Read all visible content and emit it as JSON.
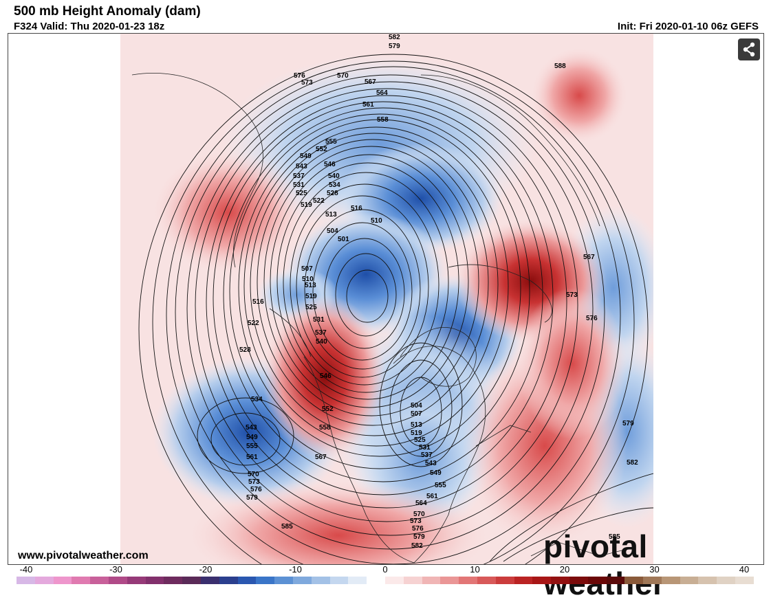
{
  "header": {
    "title": "500 mb Height Anomaly (dam)",
    "valid": "F324 Valid: Thu 2020-01-23 18z",
    "init": "Init: Fri 2020-01-10 06z GEFS"
  },
  "footer": {
    "url": "www.pivotalweather.com",
    "brand": "pivotal weather"
  },
  "share_icon": "share-icon",
  "colorbar": {
    "ticks": [
      "-40",
      "-30",
      "-20",
      "-10",
      "0",
      "10",
      "20",
      "30",
      "40"
    ],
    "colors": [
      "#d7b8e6",
      "#e4a9dd",
      "#ee96cc",
      "#e07ab0",
      "#c8609a",
      "#b04a88",
      "#963a78",
      "#82306c",
      "#6e2b5e",
      "#5a2a58",
      "#3a2f6e",
      "#2b3f8e",
      "#2a57b0",
      "#3a75c8",
      "#5c91d4",
      "#7fa9dd",
      "#a3c1e6",
      "#c4d7ef",
      "#e2ebf6",
      "#ffffff",
      "#fbe9e9",
      "#f6d2d2",
      "#f0b5b5",
      "#ea9696",
      "#e27676",
      "#d85959",
      "#cb3c3c",
      "#ba2323",
      "#a81616",
      "#931111",
      "#7c0c0c",
      "#6a0808",
      "#5a0a0a",
      "#8a5a3a",
      "#a07858",
      "#b89676",
      "#c8ae94",
      "#d6c2ae",
      "#e0d2c4",
      "#e8ddd2"
    ]
  },
  "contour_labels": [
    "582",
    "579",
    "588",
    "576",
    "573",
    "570",
    "567",
    "564",
    "561",
    "558",
    "555",
    "552",
    "549",
    "546",
    "543",
    "540",
    "537",
    "534",
    "531",
    "528",
    "525",
    "522",
    "519",
    "516",
    "513",
    "510",
    "507",
    "504",
    "501",
    "573",
    "576",
    "567",
    "579",
    "582",
    "585"
  ]
}
